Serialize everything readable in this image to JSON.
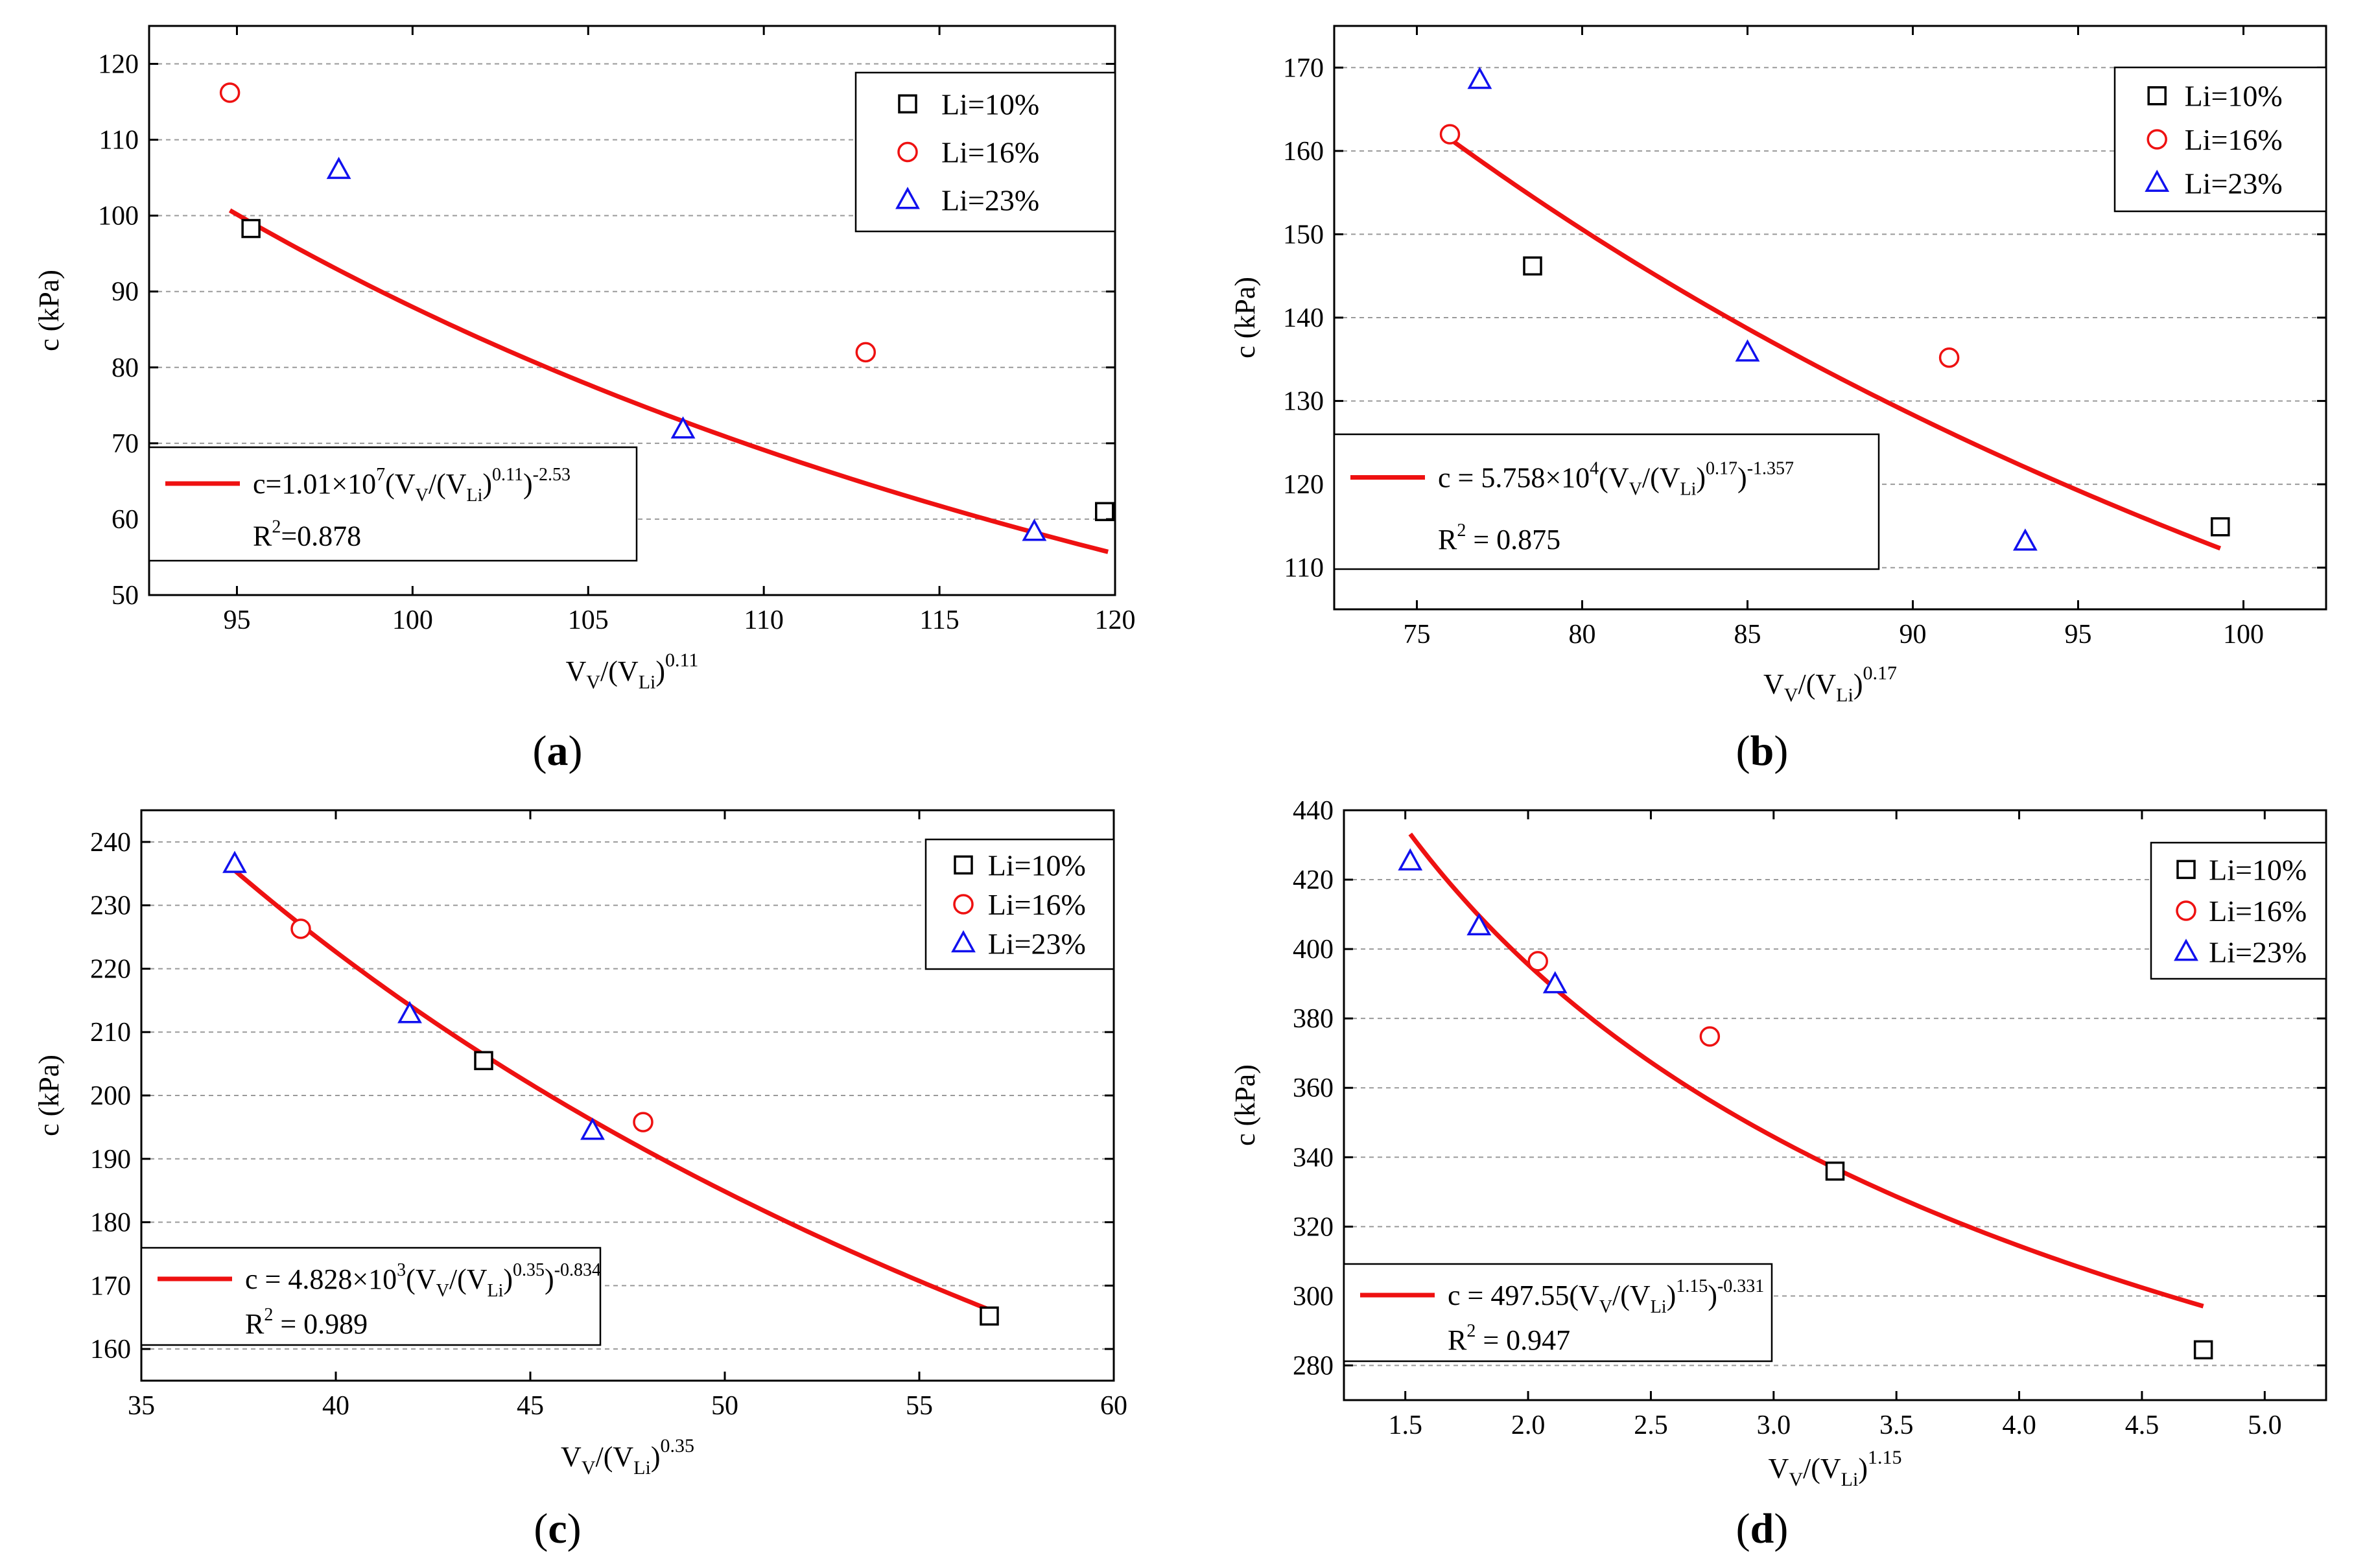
{
  "chart_data": [
    {
      "type": "scatter",
      "panel_label": "a",
      "xlabel": {
        "base": "V",
        "sub1": "V",
        "mid": "/(V",
        "sub2": "Li",
        "close": ")",
        "sup": "0.11"
      },
      "ylabel": "c (kPa)",
      "xlim": [
        92.5,
        120
      ],
      "ylim": [
        50,
        125
      ],
      "xticks": [
        95,
        100,
        105,
        110,
        115,
        120
      ],
      "yticks": [
        50,
        60,
        70,
        80,
        90,
        100,
        110,
        120
      ],
      "grid": "horizontal-dashed",
      "legend_position": "top-right",
      "series": [
        {
          "name": "Li=10%",
          "marker": "square",
          "color": "#000000",
          "points": [
            [
              95.4,
              98.3
            ],
            [
              119.7,
              61.0
            ]
          ]
        },
        {
          "name": "Li=16%",
          "marker": "circle",
          "color": "#ee1111",
          "points": [
            [
              94.8,
              116.2
            ],
            [
              112.9,
              82.0
            ]
          ]
        },
        {
          "name": "Li=23%",
          "marker": "triangle",
          "color": "#1111ee",
          "points": [
            [
              97.9,
              106.0
            ],
            [
              107.7,
              71.8
            ],
            [
              117.7,
              58.3
            ]
          ]
        }
      ],
      "fit": {
        "a": 10100000,
        "b": -2.53,
        "x_range": [
          94.8,
          119.8
        ],
        "color": "#ee1111",
        "equation_parts": [
          "c=1.01×10",
          "7",
          "(V",
          "V",
          "/(V",
          "Li",
          ")",
          "0.11",
          ")",
          "-2.53"
        ],
        "r2_text": "=0.878"
      },
      "equation_box_position": "bottom-left"
    },
    {
      "type": "scatter",
      "panel_label": "b",
      "xlabel": {
        "base": "V",
        "sub1": "V",
        "mid": "/(V",
        "sub2": "Li",
        "close": ")",
        "sup": "0.17"
      },
      "ylabel": "c (kPa)",
      "xlim": [
        72.5,
        102.5
      ],
      "ylim": [
        105,
        175
      ],
      "xticks": [
        75,
        80,
        85,
        90,
        95,
        100
      ],
      "yticks": [
        110,
        120,
        130,
        140,
        150,
        160,
        170
      ],
      "grid": "horizontal-dashed",
      "legend_position": "top-right",
      "series": [
        {
          "name": "Li=10%",
          "marker": "square",
          "color": "#000000",
          "points": [
            [
              78.5,
              146.2
            ],
            [
              99.3,
              114.9
            ]
          ]
        },
        {
          "name": "Li=16%",
          "marker": "circle",
          "color": "#ee1111",
          "points": [
            [
              76.0,
              162.0
            ],
            [
              91.1,
              135.2
            ]
          ]
        },
        {
          "name": "Li=23%",
          "marker": "triangle",
          "color": "#1111ee",
          "points": [
            [
              76.9,
              168.5
            ],
            [
              85.0,
              135.8
            ],
            [
              93.4,
              113.1
            ]
          ]
        }
      ],
      "fit": {
        "a": 57580,
        "b": -1.357,
        "x_range": [
          76.0,
          99.3
        ],
        "color": "#ee1111",
        "equation_parts": [
          "c = 5.758×10",
          "4",
          "(V",
          "V",
          "/(V",
          "Li",
          ")",
          "0.17",
          ")",
          "-1.357"
        ],
        "r2_text": " = 0.875"
      },
      "equation_box_position": "bottom-left"
    },
    {
      "type": "scatter",
      "panel_label": "c",
      "xlabel": {
        "base": "V",
        "sub1": "V",
        "mid": "/(V",
        "sub2": "Li",
        "close": ")",
        "sup": "0.35"
      },
      "ylabel": "c (kPa)",
      "xlim": [
        35,
        60
      ],
      "ylim": [
        155,
        245
      ],
      "xticks": [
        35,
        40,
        45,
        50,
        55,
        60
      ],
      "yticks": [
        160,
        170,
        180,
        190,
        200,
        210,
        220,
        230,
        240
      ],
      "grid": "horizontal-dashed",
      "legend_position": "top-right",
      "series": [
        {
          "name": "Li=10%",
          "marker": "square",
          "color": "#000000",
          "points": [
            [
              43.8,
              205.5
            ],
            [
              56.8,
              165.2
            ]
          ]
        },
        {
          "name": "Li=16%",
          "marker": "circle",
          "color": "#ee1111",
          "points": [
            [
              39.1,
              226.3
            ],
            [
              47.9,
              195.8
            ]
          ]
        },
        {
          "name": "Li=23%",
          "marker": "triangle",
          "color": "#1111ee",
          "points": [
            [
              37.4,
              236.5
            ],
            [
              41.9,
              212.8
            ],
            [
              46.6,
              194.4
            ]
          ]
        }
      ],
      "fit": {
        "a": 4828,
        "b": -0.834,
        "x_range": [
          37.4,
          56.8
        ],
        "color": "#ee1111",
        "equation_parts": [
          "c = 4.828×10",
          "3",
          "(V",
          "V",
          "/(V",
          "Li",
          ")",
          "0.35",
          ")",
          "-0.834"
        ],
        "r2_text": " = 0.989"
      },
      "equation_box_position": "bottom-left"
    },
    {
      "type": "scatter",
      "panel_label": "d",
      "xlabel": {
        "base": "V",
        "sub1": "V",
        "mid": "/(V",
        "sub2": "Li",
        "close": ")",
        "sup": "1.15"
      },
      "ylabel": "c (kPa)",
      "xlim": [
        1.25,
        5.25
      ],
      "ylim": [
        270,
        440
      ],
      "xticks": [
        "1.5",
        "2.0",
        "2.5",
        "3.0",
        "3.5",
        "4.0",
        "4.5",
        "5.0"
      ],
      "yticks": [
        280,
        300,
        320,
        340,
        360,
        380,
        400,
        420,
        440
      ],
      "grid": "horizontal-dashed",
      "legend_position": "top-right",
      "series": [
        {
          "name": "Li=10%",
          "marker": "square",
          "color": "#000000",
          "points": [
            [
              3.25,
              336.0
            ],
            [
              4.75,
              284.5
            ]
          ]
        },
        {
          "name": "Li=16%",
          "marker": "circle",
          "color": "#ee1111",
          "points": [
            [
              2.04,
              396.5
            ],
            [
              2.74,
              374.8
            ]
          ]
        },
        {
          "name": "Li=23%",
          "marker": "triangle",
          "color": "#1111ee",
          "points": [
            [
              1.52,
              425.2
            ],
            [
              1.8,
              406.5
            ],
            [
              2.11,
              389.8
            ]
          ]
        }
      ],
      "fit": {
        "a": 497.55,
        "b": -0.331,
        "x_range": [
          1.52,
          4.75
        ],
        "color": "#ee1111",
        "equation_parts": [
          "c = 497.55(V",
          "V",
          "/(V",
          "Li",
          ")",
          "1.15",
          ")",
          "-0.331"
        ],
        "r2_text": " = 0.947"
      },
      "equation_box_position": "bottom-left"
    }
  ]
}
